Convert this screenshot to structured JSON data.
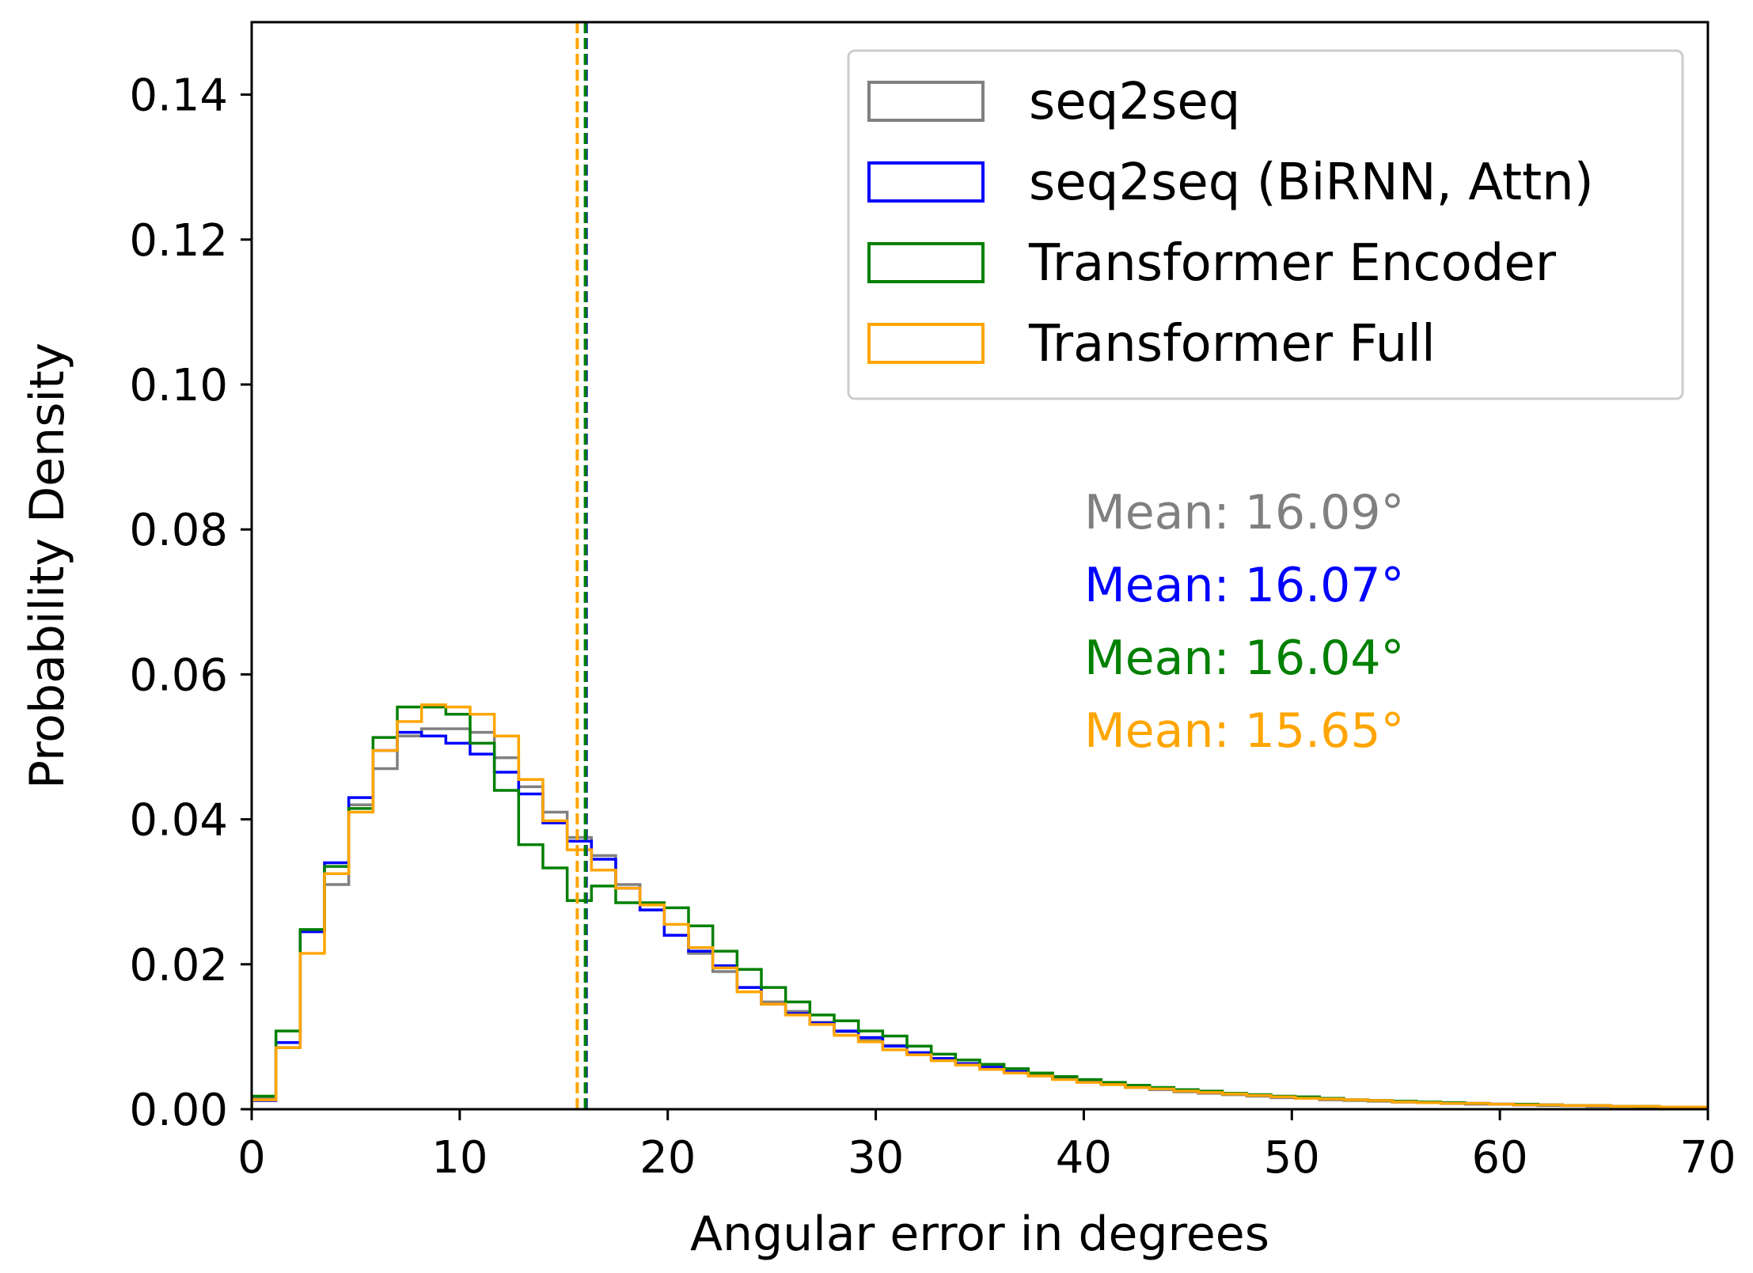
{
  "chart_data": {
    "type": "histogram",
    "xlabel": "Angular error in degrees",
    "ylabel": "Probability Density",
    "xlim": [
      0,
      70
    ],
    "ylim": [
      0,
      0.15
    ],
    "x_ticks": [
      0,
      10,
      20,
      30,
      40,
      50,
      60,
      70
    ],
    "y_ticks": [
      0.0,
      0.02,
      0.04,
      0.06,
      0.08,
      0.1,
      0.12,
      0.14
    ],
    "y_tick_labels": [
      "0.00",
      "0.02",
      "0.04",
      "0.06",
      "0.08",
      "0.10",
      "0.12",
      "0.14"
    ],
    "bin_edges": [
      0,
      1.16667,
      2.33333,
      3.5,
      4.66667,
      5.83333,
      7,
      8.16667,
      9.33333,
      10.5,
      11.66667,
      12.83333,
      14,
      15.16667,
      16.33333,
      17.5,
      18.66667,
      19.83333,
      21,
      22.16667,
      23.33333,
      24.5,
      25.66667,
      26.83333,
      28,
      29.16667,
      30.33333,
      31.5,
      32.66667,
      33.83333,
      35,
      36.16667,
      37.33333,
      38.5,
      39.66667,
      40.83333,
      42,
      43.16667,
      44.33333,
      45.5,
      46.66667,
      47.83333,
      49,
      50.16667,
      51.33333,
      52.5,
      53.66667,
      54.83333,
      56,
      57.16667,
      58.33333,
      59.5,
      60.66667,
      61.83333,
      63,
      64.16667,
      65.33333,
      66.5,
      67.66667,
      68.83333,
      70
    ],
    "series": [
      {
        "name": "seq2seq",
        "color": "#808080",
        "mean": 16.09,
        "mean_label": "Mean: 16.09°",
        "values": [
          0.0015,
          0.0085,
          0.0245,
          0.031,
          0.042,
          0.047,
          0.0515,
          0.0525,
          0.0525,
          0.052,
          0.0485,
          0.0445,
          0.041,
          0.0375,
          0.035,
          0.031,
          0.0275,
          0.024,
          0.0215,
          0.019,
          0.0168,
          0.0148,
          0.0135,
          0.012,
          0.0107,
          0.0096,
          0.0088,
          0.0078,
          0.007,
          0.0063,
          0.0057,
          0.0051,
          0.0046,
          0.0042,
          0.0038,
          0.0034,
          0.003,
          0.0027,
          0.0024,
          0.0022,
          0.002,
          0.0018,
          0.0016,
          0.0015,
          0.0013,
          0.0012,
          0.0011,
          0.001,
          0.0009,
          0.0008,
          0.0007,
          0.0007,
          0.0006,
          0.0005,
          0.0005,
          0.0004,
          0.0004,
          0.0003,
          0.0003,
          0.0003
        ]
      },
      {
        "name": "seq2seq (BiRNN, Attn)",
        "color": "#0000ff",
        "mean": 16.07,
        "mean_label": "Mean: 16.07°",
        "values": [
          0.0012,
          0.0092,
          0.0245,
          0.034,
          0.043,
          0.0495,
          0.052,
          0.0515,
          0.0505,
          0.049,
          0.0465,
          0.0435,
          0.0395,
          0.037,
          0.0345,
          0.0305,
          0.0275,
          0.024,
          0.0218,
          0.0198,
          0.0168,
          0.0145,
          0.0132,
          0.0119,
          0.0108,
          0.0099,
          0.0087,
          0.0078,
          0.007,
          0.0063,
          0.0058,
          0.0052,
          0.0047,
          0.0042,
          0.0038,
          0.0035,
          0.0032,
          0.0028,
          0.0025,
          0.0023,
          0.0021,
          0.0019,
          0.0017,
          0.0015,
          0.0014,
          0.0013,
          0.0012,
          0.001,
          0.0009,
          0.0008,
          0.0008,
          0.0007,
          0.0006,
          0.0006,
          0.0005,
          0.0005,
          0.0004,
          0.0004,
          0.0003,
          0.0003
        ]
      },
      {
        "name": "Transformer Encoder",
        "color": "#008000",
        "mean": 16.04,
        "mean_label": "Mean: 16.04°",
        "values": [
          0.0018,
          0.0108,
          0.0248,
          0.0335,
          0.0415,
          0.0513,
          0.0555,
          0.0555,
          0.0545,
          0.0505,
          0.044,
          0.0365,
          0.0333,
          0.0288,
          0.0308,
          0.0285,
          0.0285,
          0.0278,
          0.0253,
          0.0218,
          0.0193,
          0.0168,
          0.0148,
          0.013,
          0.0122,
          0.0108,
          0.0101,
          0.0087,
          0.0076,
          0.0068,
          0.0062,
          0.0056,
          0.005,
          0.0045,
          0.0041,
          0.0037,
          0.0033,
          0.003,
          0.0027,
          0.0025,
          0.0022,
          0.002,
          0.0018,
          0.0017,
          0.0015,
          0.0013,
          0.0012,
          0.0011,
          0.001,
          0.0009,
          0.0008,
          0.0007,
          0.0007,
          0.0006,
          0.0005,
          0.0005,
          0.0004,
          0.0004,
          0.0003,
          0.0003
        ]
      },
      {
        "name": "Transformer Full",
        "color": "#ffa500",
        "mean": 15.65,
        "mean_label": "Mean: 15.65°",
        "values": [
          0.0013,
          0.0085,
          0.0215,
          0.0325,
          0.041,
          0.0495,
          0.0535,
          0.0558,
          0.0555,
          0.0545,
          0.0515,
          0.0455,
          0.0398,
          0.0358,
          0.033,
          0.0305,
          0.0282,
          0.0255,
          0.0223,
          0.0195,
          0.0162,
          0.0145,
          0.013,
          0.0117,
          0.0102,
          0.0093,
          0.0082,
          0.0075,
          0.0067,
          0.0061,
          0.0055,
          0.005,
          0.0046,
          0.0041,
          0.0037,
          0.0034,
          0.003,
          0.0028,
          0.0025,
          0.0023,
          0.0021,
          0.0019,
          0.0017,
          0.0015,
          0.0014,
          0.0013,
          0.0012,
          0.001,
          0.0009,
          0.0008,
          0.0008,
          0.0007,
          0.0006,
          0.0006,
          0.0005,
          0.0005,
          0.0004,
          0.0004,
          0.0003,
          0.0003
        ]
      }
    ],
    "legend_position": "top-right",
    "grid": false
  }
}
